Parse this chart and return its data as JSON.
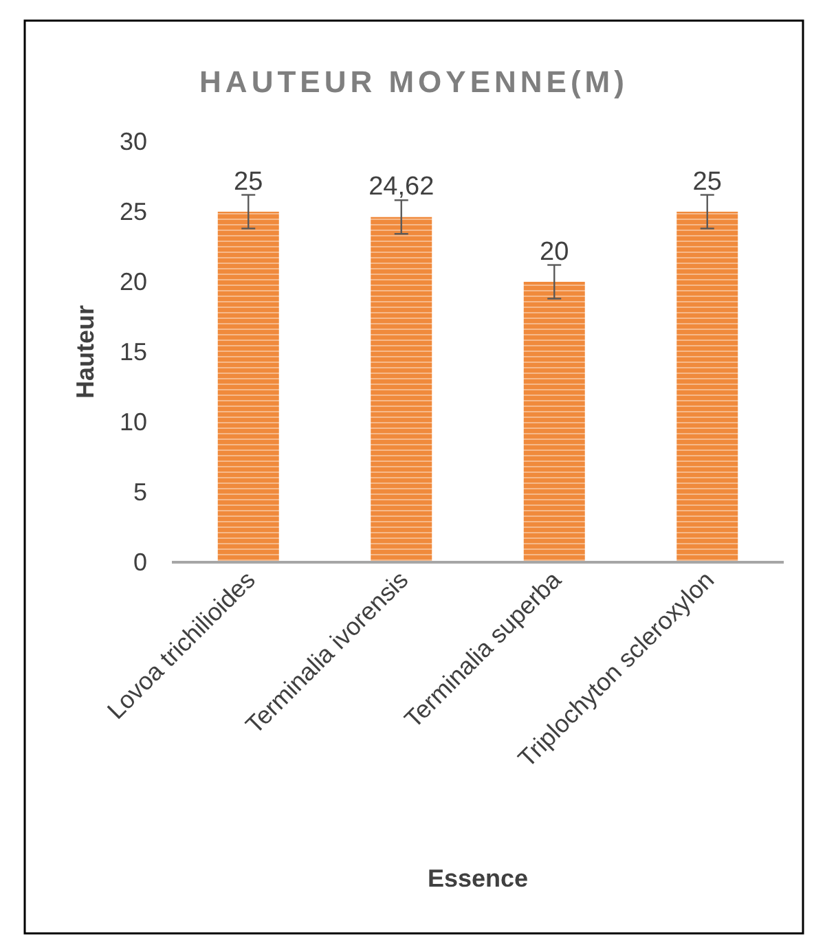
{
  "chart_data": {
    "type": "bar",
    "title": "HAUTEUR MOYENNE(M)",
    "xlabel": "Essence",
    "ylabel": "Hauteur",
    "categories": [
      "Lovoa trichilioides",
      "Terminalia ivorensis",
      "Terminalia superba",
      "Triplochyton scleroxylon"
    ],
    "values": [
      25,
      24.62,
      20,
      25
    ],
    "value_labels": [
      "25",
      "24,62",
      "20",
      "25"
    ],
    "errors": [
      1.2,
      1.2,
      1.2,
      1.2
    ],
    "color": "#f08a3c",
    "ylim": [
      0,
      30
    ],
    "yticks": [
      0,
      5,
      10,
      15,
      20,
      25,
      30
    ],
    "grid": false
  }
}
